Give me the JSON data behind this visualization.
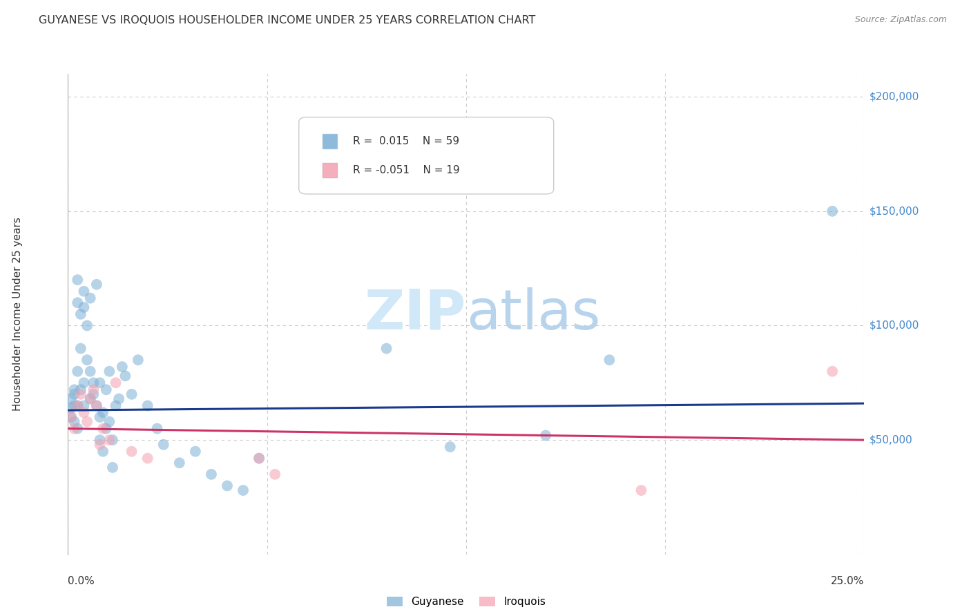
{
  "title": "GUYANESE VS IROQUOIS HOUSEHOLDER INCOME UNDER 25 YEARS CORRELATION CHART",
  "source": "Source: ZipAtlas.com",
  "ylabel": "Householder Income Under 25 years",
  "xlim": [
    0.0,
    0.25
  ],
  "ylim": [
    0,
    210000
  ],
  "yticks": [
    0,
    50000,
    100000,
    150000,
    200000
  ],
  "ytick_labels": [
    "",
    "$50,000",
    "$100,000",
    "$150,000",
    "$200,000"
  ],
  "xtick_vals": [
    0.0,
    0.0625,
    0.125,
    0.1875,
    0.25
  ],
  "background_color": "#ffffff",
  "guyanese_color": "#7bafd4",
  "iroquois_color": "#f4a0b0",
  "trend_blue": "#1a3a8c",
  "trend_pink": "#cc3366",
  "ytick_color": "#4488cc",
  "guyanese_x": [
    0.001,
    0.001,
    0.001,
    0.002,
    0.002,
    0.002,
    0.002,
    0.003,
    0.003,
    0.003,
    0.003,
    0.003,
    0.004,
    0.004,
    0.004,
    0.005,
    0.005,
    0.005,
    0.005,
    0.006,
    0.006,
    0.007,
    0.007,
    0.007,
    0.008,
    0.008,
    0.009,
    0.009,
    0.01,
    0.01,
    0.01,
    0.011,
    0.011,
    0.012,
    0.012,
    0.013,
    0.013,
    0.014,
    0.014,
    0.015,
    0.016,
    0.017,
    0.018,
    0.02,
    0.022,
    0.025,
    0.028,
    0.03,
    0.035,
    0.04,
    0.045,
    0.05,
    0.055,
    0.06,
    0.1,
    0.12,
    0.15,
    0.17,
    0.24
  ],
  "guyanese_y": [
    68000,
    64000,
    60000,
    72000,
    70000,
    65000,
    58000,
    120000,
    110000,
    80000,
    65000,
    55000,
    105000,
    90000,
    72000,
    115000,
    108000,
    75000,
    65000,
    100000,
    85000,
    112000,
    80000,
    68000,
    75000,
    70000,
    118000,
    65000,
    75000,
    60000,
    50000,
    62000,
    45000,
    55000,
    72000,
    80000,
    58000,
    50000,
    38000,
    65000,
    68000,
    82000,
    78000,
    70000,
    85000,
    65000,
    55000,
    48000,
    40000,
    45000,
    35000,
    30000,
    28000,
    42000,
    90000,
    47000,
    52000,
    85000,
    150000
  ],
  "iroquois_x": [
    0.001,
    0.002,
    0.003,
    0.004,
    0.005,
    0.006,
    0.007,
    0.008,
    0.009,
    0.01,
    0.011,
    0.013,
    0.015,
    0.02,
    0.025,
    0.06,
    0.065,
    0.18,
    0.24
  ],
  "iroquois_y": [
    60000,
    55000,
    65000,
    70000,
    62000,
    58000,
    68000,
    72000,
    65000,
    48000,
    55000,
    50000,
    75000,
    45000,
    42000,
    42000,
    35000,
    28000,
    80000
  ],
  "guyanese_trend_x": [
    0.0,
    0.25
  ],
  "guyanese_trend_y": [
    63000,
    66000
  ],
  "iroquois_trend_x": [
    0.0,
    0.25
  ],
  "iroquois_trend_y": [
    55000,
    50000
  ],
  "grid_color": "#cccccc",
  "marker_size": 130
}
